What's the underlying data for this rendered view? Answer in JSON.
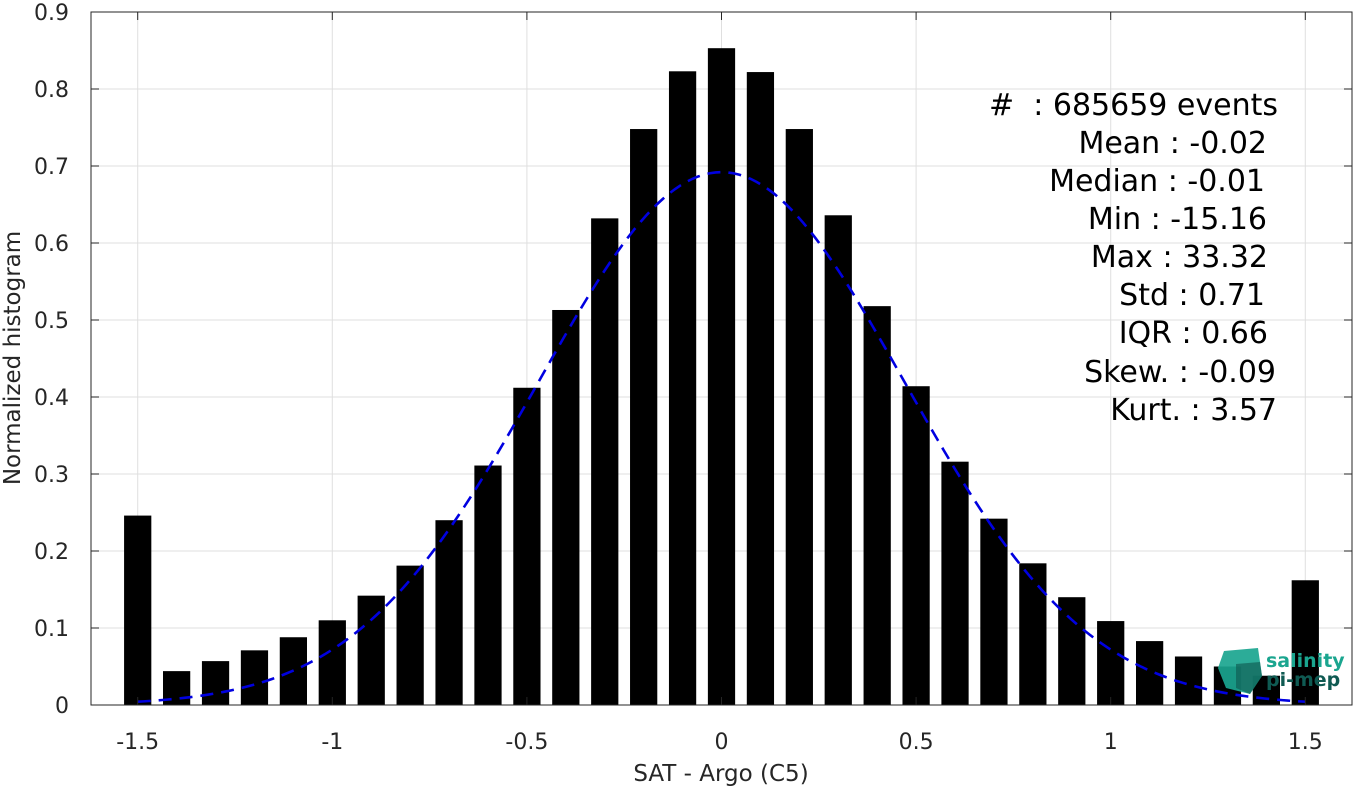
{
  "chart_data": {
    "type": "bar",
    "xlabel": "SAT - Argo (C5)",
    "ylabel": "Normalized histogram",
    "xlim": [
      -1.62,
      1.62
    ],
    "ylim": [
      0,
      0.9
    ],
    "grid": true,
    "x_ticks": [
      -1.5,
      -1,
      -0.5,
      0,
      0.5,
      1,
      1.5
    ],
    "x_tick_labels": [
      "-1.5",
      "-1",
      "-0.5",
      "0",
      "0.5",
      "1",
      "1.5"
    ],
    "y_ticks": [
      0,
      0.1,
      0.2,
      0.3,
      0.4,
      0.5,
      0.6,
      0.7,
      0.8,
      0.9
    ],
    "y_tick_labels": [
      "0",
      "0.1",
      "0.2",
      "0.3",
      "0.4",
      "0.5",
      "0.6",
      "0.7",
      "0.8",
      "0.9"
    ],
    "bar_width": 0.07,
    "series": [
      {
        "type": "bar",
        "color": "#000000",
        "x": [
          -1.5,
          -1.4,
          -1.3,
          -1.2,
          -1.1,
          -1.0,
          -0.9,
          -0.8,
          -0.7,
          -0.6,
          -0.5,
          -0.4,
          -0.3,
          -0.2,
          -0.1,
          0.0,
          0.1,
          0.2,
          0.3,
          0.4,
          0.5,
          0.6,
          0.7,
          0.8,
          0.9,
          1.0,
          1.1,
          1.2,
          1.3,
          1.4,
          1.5
        ],
        "values": [
          0.246,
          0.044,
          0.057,
          0.071,
          0.088,
          0.11,
          0.142,
          0.181,
          0.24,
          0.311,
          0.412,
          0.513,
          0.632,
          0.748,
          0.823,
          0.853,
          0.822,
          0.748,
          0.636,
          0.518,
          0.414,
          0.316,
          0.242,
          0.184,
          0.14,
          0.109,
          0.083,
          0.063,
          0.05,
          0.038,
          0.162
        ]
      },
      {
        "type": "line",
        "style": "dashed",
        "color": "#0000e0",
        "fit": "normal",
        "mean": 0.0,
        "peak": 0.692,
        "sigma": 0.47,
        "x_range": [
          -1.5,
          1.5
        ]
      }
    ],
    "stats_box": [
      {
        "label": "#",
        "sep": ":",
        "value": "685659 events"
      },
      {
        "label": "Mean",
        "sep": ":",
        "value": "-0.02"
      },
      {
        "label": "Median",
        "sep": ":",
        "value": "-0.01"
      },
      {
        "label": "Min",
        "sep": ":",
        "value": "-15.16"
      },
      {
        "label": "Max",
        "sep": ":",
        "value": "33.32"
      },
      {
        "label": "Std",
        "sep": ":",
        "value": "0.71"
      },
      {
        "label": "IQR",
        "sep": ":",
        "value": "0.66"
      },
      {
        "label": "Skew.",
        "sep": ":",
        "value": "-0.09"
      },
      {
        "label": "Kurt.",
        "sep": ":",
        "value": "3.57"
      }
    ]
  },
  "stats_lines": [
    "#  : 685659 events",
    "Mean : -0.02",
    "Median : -0.01",
    "Min : -15.16",
    "Max : 33.32",
    "Std : 0.71",
    "IQR : 0.66",
    "Skew. : -0.09",
    "Kurt. : 3.57"
  ],
  "logo": {
    "line1": "salinity",
    "line2": "pi-mep",
    "color_primary": "#1aa58f",
    "color_dark": "#0f5a52"
  }
}
